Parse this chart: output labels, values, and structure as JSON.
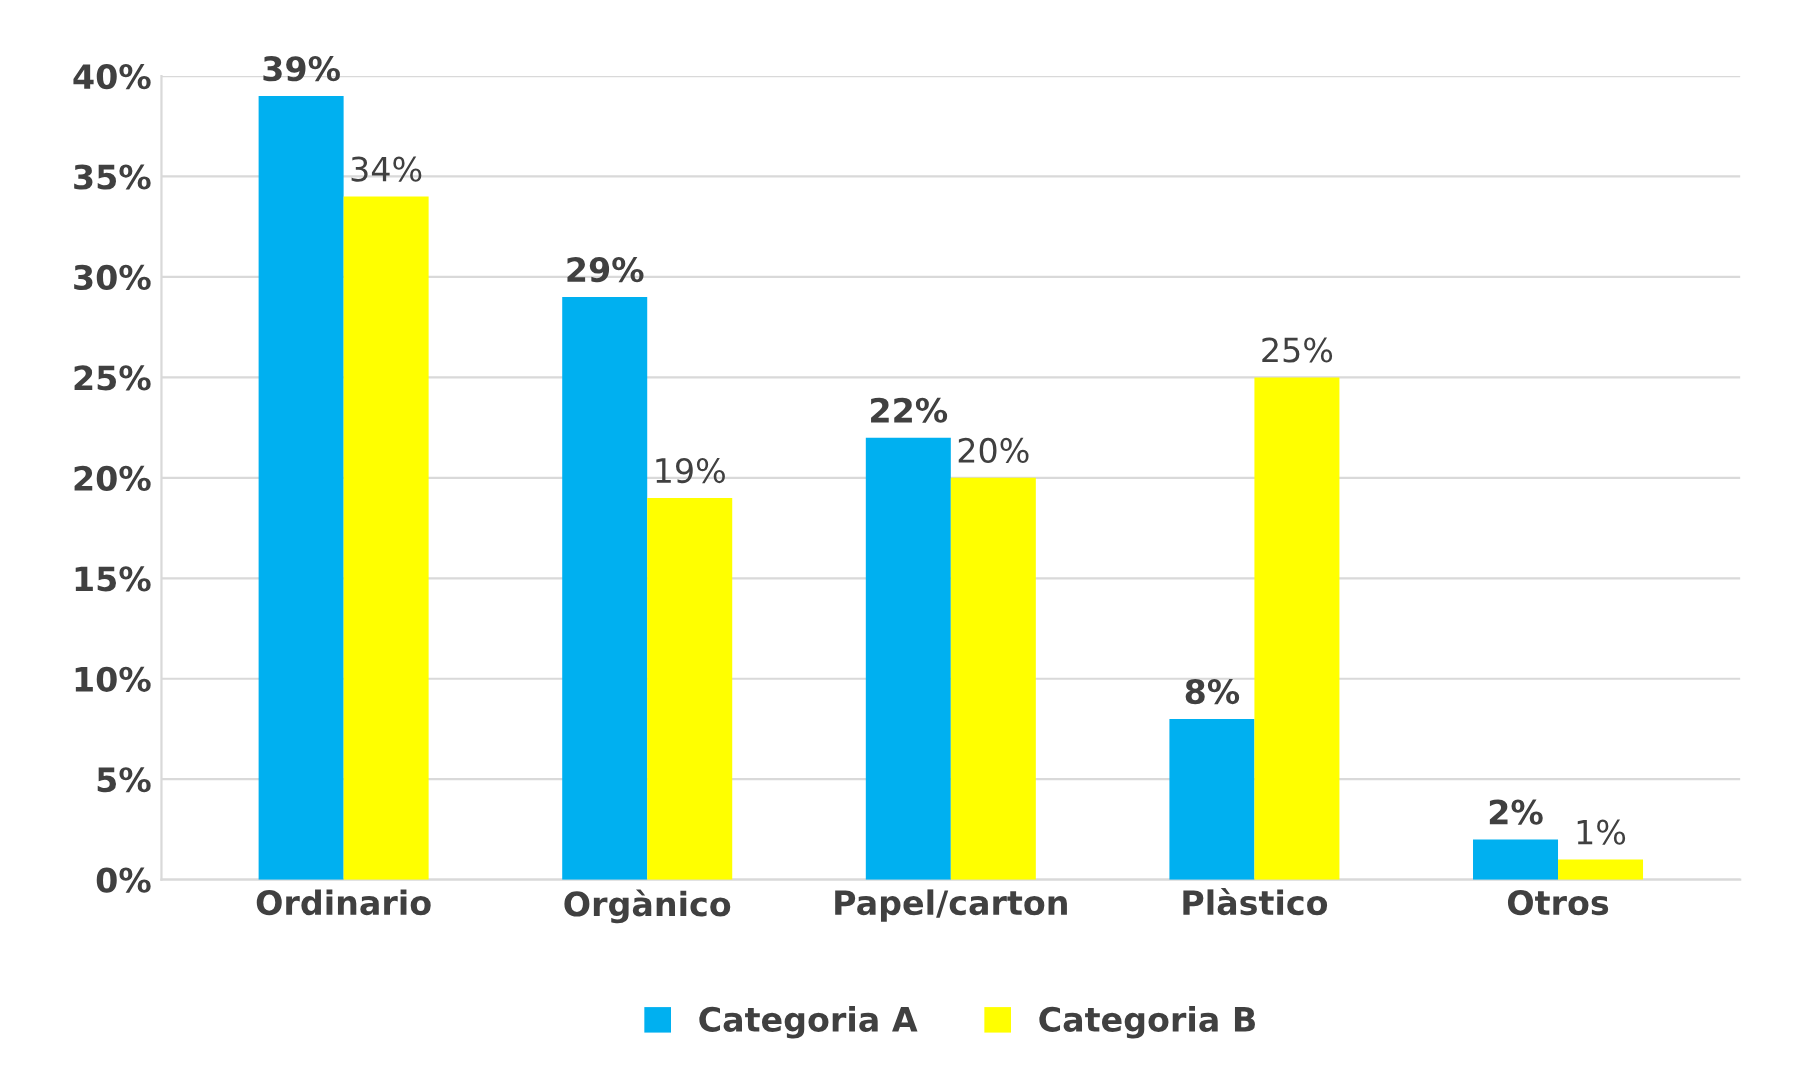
{
  "chart_data": {
    "type": "bar",
    "categories": [
      "Ordinario",
      "Orgànico",
      "Papel/carton",
      "Plàstico",
      "Otros"
    ],
    "series": [
      {
        "name": "Categoria A",
        "color": "#00b0f0",
        "values": [
          39,
          29,
          22,
          8,
          2
        ],
        "value_labels": [
          "39%",
          "29%",
          "22%",
          "8%",
          "2%"
        ]
      },
      {
        "name": "Categoria B",
        "color": "#ffff00",
        "values": [
          34,
          19,
          20,
          25,
          1
        ],
        "value_labels": [
          "34%",
          "19%",
          "20%",
          "25%",
          "1%"
        ]
      }
    ],
    "ylim": [
      0,
      40
    ],
    "yticks": [
      {
        "value": 0,
        "label": "0%"
      },
      {
        "value": 5,
        "label": "5%"
      },
      {
        "value": 10,
        "label": "10%"
      },
      {
        "value": 15,
        "label": "15%"
      },
      {
        "value": 20,
        "label": "20%"
      },
      {
        "value": 25,
        "label": "25%"
      },
      {
        "value": 30,
        "label": "30%"
      },
      {
        "value": 35,
        "label": "35%"
      },
      {
        "value": 40,
        "label": "40%"
      }
    ],
    "grid": "y",
    "legend": "bottom"
  }
}
